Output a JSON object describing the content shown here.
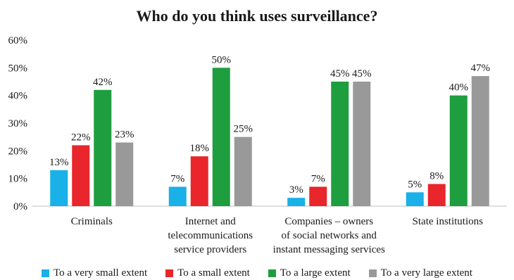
{
  "chart_data": {
    "type": "bar",
    "title": "Who do you think uses surveillance?",
    "categories": [
      [
        "Criminals"
      ],
      [
        "Internet and",
        "telecommunications",
        "service providers"
      ],
      [
        "Companies – owners",
        "of social networks and",
        "instant messaging services"
      ],
      [
        "State institutions"
      ]
    ],
    "series": [
      {
        "name": "To a very small extent",
        "color": "#1ab0e8",
        "values": [
          13,
          7,
          3,
          5
        ],
        "labels": [
          "13%",
          "7%",
          "3%",
          "5%"
        ]
      },
      {
        "name": "To a small extent",
        "color": "#e8262b",
        "values": [
          22,
          18,
          7,
          8
        ],
        "labels": [
          "22%",
          "18%",
          "7%",
          "8%"
        ]
      },
      {
        "name": "To a large extent",
        "color": "#1f9e3f",
        "values": [
          42,
          50,
          45,
          40
        ],
        "labels": [
          "42%",
          "50%",
          "45%",
          "40%"
        ]
      },
      {
        "name": "To a very large extent",
        "color": "#999999",
        "values": [
          23,
          25,
          45,
          47
        ],
        "labels": [
          "23%",
          "25%",
          "45%",
          "47%"
        ]
      }
    ],
    "ylim": [
      0,
      60
    ],
    "yticks": [
      0,
      10,
      20,
      30,
      40,
      50,
      60
    ],
    "ytick_labels": [
      "0%",
      "10%",
      "20%",
      "30%",
      "40%",
      "50%",
      "60%"
    ],
    "grid": false,
    "legend_position": "bottom"
  }
}
